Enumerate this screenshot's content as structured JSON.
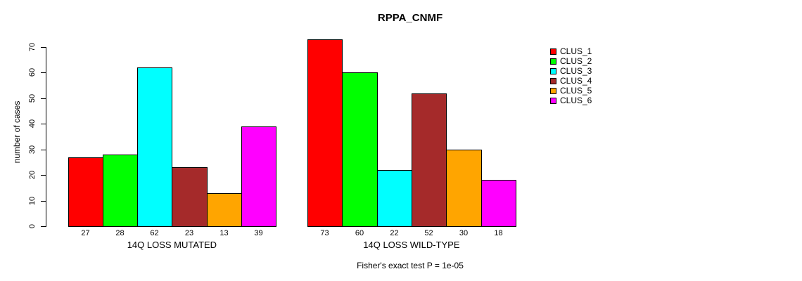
{
  "chart_data": {
    "type": "bar",
    "title": "RPPA_CNMF",
    "ylabel": "number of cases",
    "xlabel": "",
    "ylim": [
      0,
      70
    ],
    "yticks": [
      0,
      10,
      20,
      30,
      40,
      50,
      60,
      70
    ],
    "grid": false,
    "legend_position": "right",
    "groups": [
      {
        "label": "14Q LOSS MUTATED",
        "values": [
          27,
          28,
          62,
          23,
          13,
          39
        ]
      },
      {
        "label": "14Q LOSS WILD-TYPE",
        "values": [
          73,
          60,
          22,
          52,
          30,
          18
        ]
      }
    ],
    "legend_labels": [
      "CLUS_1",
      "CLUS_2",
      "CLUS_3",
      "CLUS_4",
      "CLUS_5",
      "CLUS_6"
    ],
    "series_colors": [
      "#FF0000",
      "#00FF00",
      "#00FFFF",
      "#A52A2A",
      "#FFA500",
      "#FF00FF"
    ],
    "annotation": "Fisher's exact test P = 1e-05"
  }
}
